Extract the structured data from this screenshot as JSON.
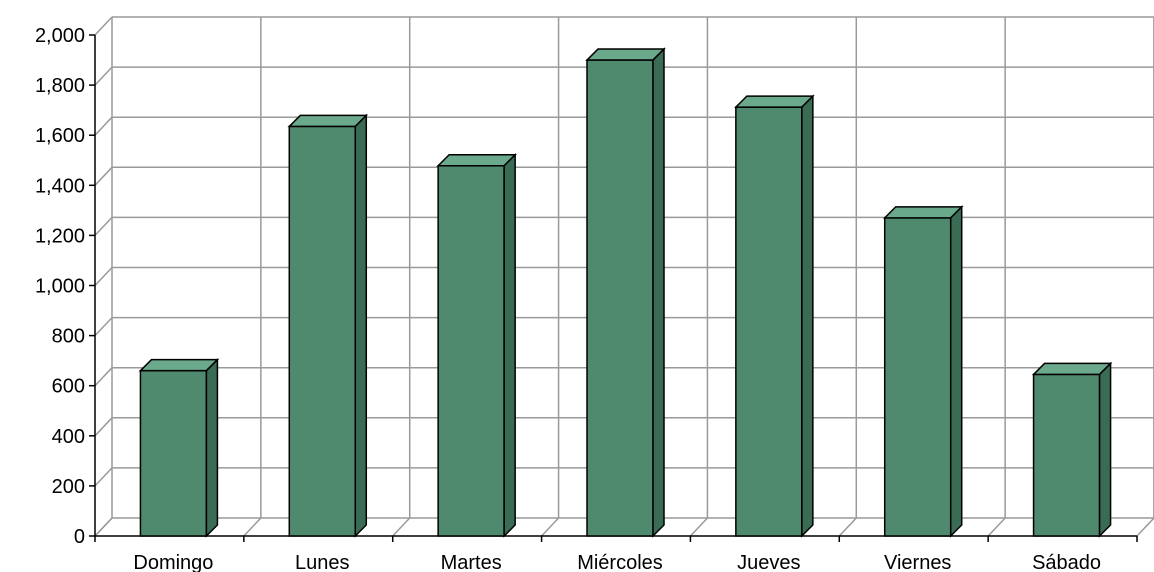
{
  "chart_data": {
    "type": "bar",
    "title": "",
    "xlabel": "",
    "ylabel": "",
    "categories": [
      "Domingo",
      "Lunes",
      "Martes",
      "Miércoles",
      "Jueves",
      "Viernes",
      "Sábado"
    ],
    "values": [
      660,
      1635,
      1478,
      1900,
      1712,
      1270,
      645
    ],
    "ylim": [
      0,
      2000
    ],
    "yticks": [
      0,
      200,
      400,
      600,
      800,
      1000,
      1200,
      1400,
      1600,
      1800,
      2000
    ],
    "ytick_labels": [
      "0",
      "200",
      "400",
      "600",
      "800",
      "1,000",
      "1,200",
      "1,400",
      "1,600",
      "1,800",
      "2,000"
    ],
    "grid": true,
    "three_d": true,
    "colors": {
      "bar_front": "#4f8a6e",
      "bar_top": "#6aa98b",
      "bar_side": "#3a6b54",
      "grid": "#9a9a9a",
      "axis": "#000000"
    }
  }
}
